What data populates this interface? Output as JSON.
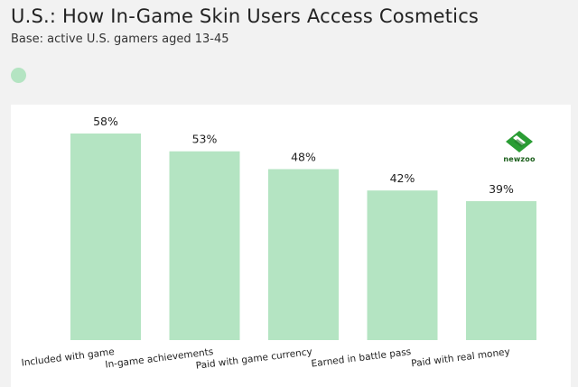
{
  "title": "U.S.: How In-Game Skin Users Access Cosmetics",
  "subtitle": "Base: active U.S. gamers aged 13-45",
  "logo_text": "newzoo",
  "colors": {
    "bar": "#b4e4c2",
    "legend": "#b4e4c2",
    "logo": "#2a9d34"
  },
  "chart_data": {
    "type": "bar",
    "categories": [
      "Included with game",
      "In-game achievements",
      "Paid with game currency",
      "Earned in battle pass",
      "Paid with real money"
    ],
    "values": [
      58,
      53,
      48,
      42,
      39
    ],
    "value_labels": [
      "58%",
      "53%",
      "48%",
      "42%",
      "39%"
    ],
    "ylim": [
      0,
      65
    ],
    "grid": false,
    "title": "U.S.: How In-Game Skin Users Access Cosmetics",
    "xlabel": "",
    "ylabel": ""
  }
}
